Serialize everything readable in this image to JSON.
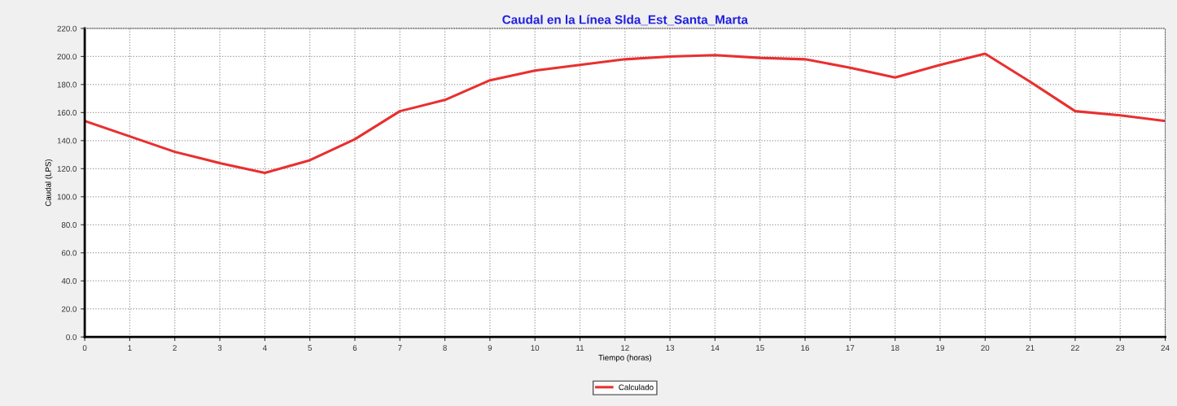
{
  "chart_data": {
    "type": "line",
    "title": "Caudal en la Línea Slda_Est_Santa_Marta",
    "xlabel": "Tiempo (horas)",
    "ylabel": "Caudal (LPS)",
    "x": [
      0,
      1,
      2,
      3,
      4,
      5,
      6,
      7,
      8,
      9,
      10,
      11,
      12,
      13,
      14,
      15,
      16,
      17,
      18,
      19,
      20,
      21,
      22,
      23,
      24
    ],
    "series": [
      {
        "name": "Calculado",
        "color": "#e8302f",
        "values": [
          154,
          143,
          132,
          124,
          117,
          126,
          141,
          161,
          169,
          183,
          190,
          194,
          198,
          200,
          201,
          199,
          198,
          192,
          185,
          194,
          202,
          182,
          161,
          158,
          154
        ]
      }
    ],
    "xlim": [
      0,
      24
    ],
    "xticks": [
      0,
      1,
      2,
      3,
      4,
      5,
      6,
      7,
      8,
      9,
      10,
      11,
      12,
      13,
      14,
      15,
      16,
      17,
      18,
      19,
      20,
      21,
      22,
      23,
      24
    ],
    "ylim": [
      0,
      220
    ],
    "yticks": [
      {
        "value": 0,
        "label": "0.0"
      },
      {
        "value": 20,
        "label": "20.0"
      },
      {
        "value": 40,
        "label": "40.0"
      },
      {
        "value": 60,
        "label": "60.0"
      },
      {
        "value": 80,
        "label": "80.0"
      },
      {
        "value": 100,
        "label": "100.0"
      },
      {
        "value": 120,
        "label": "120.0"
      },
      {
        "value": 140,
        "label": "140.0"
      },
      {
        "value": 160,
        "label": "160.0"
      },
      {
        "value": 180,
        "label": "180.0"
      },
      {
        "value": 200,
        "label": "200.0"
      },
      {
        "value": 220,
        "label": "220.0"
      }
    ],
    "grid": true,
    "legend": "bottom",
    "marker": "none",
    "line_style": "solid"
  }
}
